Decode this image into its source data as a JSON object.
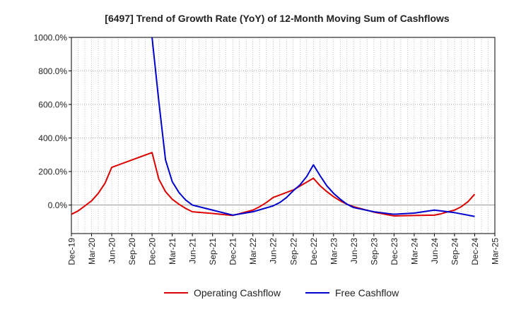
{
  "chart_data": {
    "type": "line",
    "title": "[6497]  Trend of Growth Rate (YoY) of 12-Month Moving Sum of Cashflows",
    "xlabel": "",
    "ylabel": "",
    "x_tick_labels": [
      "Dec-19",
      "Mar-20",
      "Jun-20",
      "Sep-20",
      "Dec-20",
      "Mar-21",
      "Jun-21",
      "Sep-21",
      "Dec-21",
      "Mar-22",
      "Jun-22",
      "Sep-22",
      "Dec-22",
      "Mar-23",
      "Jun-23",
      "Sep-23",
      "Dec-23",
      "Mar-24",
      "Jun-24",
      "Sep-24",
      "Dec-24",
      "Mar-25"
    ],
    "y_tick_labels": [
      "0.0%",
      "200.0%",
      "400.0%",
      "600.0%",
      "800.0%",
      "1000.0%"
    ],
    "y_ticks": [
      0,
      200,
      400,
      600,
      800,
      1000
    ],
    "ylim": [
      -170,
      1000
    ],
    "x_month_range": [
      0,
      63
    ],
    "grid": true,
    "legend_position": "bottom",
    "colors": {
      "operating": "#dd0000",
      "free": "#0000cc",
      "grid": "#999999",
      "axis": "#000000"
    },
    "series": [
      {
        "name": "Operating Cashflow",
        "color": "#dd0000",
        "x": [
          "Dec-19",
          "Jan-20",
          "Feb-20",
          "Mar-20",
          "Apr-20",
          "May-20",
          "Jun-20",
          "Dec-20",
          "Jan-21",
          "Feb-21",
          "Mar-21",
          "Apr-21",
          "May-21",
          "Jun-21",
          "Sep-21",
          "Dec-21",
          "Mar-22",
          "Apr-22",
          "May-22",
          "Jun-22",
          "Sep-22",
          "Dec-22",
          "Jan-23",
          "Feb-23",
          "Mar-23",
          "Apr-23",
          "May-23",
          "Jun-23",
          "Sep-23",
          "Dec-23",
          "Mar-24",
          "Jun-24",
          "Jul-24",
          "Aug-24",
          "Sep-24",
          "Oct-24",
          "Nov-24",
          "Dec-24"
        ],
        "y": [
          -55,
          -35,
          -5,
          25,
          70,
          130,
          225,
          313,
          155,
          80,
          35,
          5,
          -20,
          -40,
          -50,
          -62,
          -30,
          -10,
          15,
          45,
          90,
          160,
          115,
          80,
          50,
          25,
          5,
          -10,
          -42,
          -65,
          -62,
          -60,
          -52,
          -40,
          -30,
          -10,
          20,
          65
        ]
      },
      {
        "name": "Free Cashflow",
        "color": "#0000cc",
        "x": [
          "Dec-20",
          "Jan-21",
          "Feb-21",
          "Mar-21",
          "Apr-21",
          "May-21",
          "Jun-21",
          "Sep-21",
          "Dec-21",
          "Mar-22",
          "Jun-22",
          "Jul-22",
          "Aug-22",
          "Sep-22",
          "Oct-22",
          "Nov-22",
          "Dec-22",
          "Jan-23",
          "Feb-23",
          "Mar-23",
          "Apr-23",
          "May-23",
          "Jun-23",
          "Sep-23",
          "Dec-23",
          "Mar-24",
          "Jun-24",
          "Sep-24",
          "Dec-24"
        ],
        "y": [
          1000,
          620,
          270,
          140,
          75,
          30,
          0,
          -30,
          -60,
          -40,
          -5,
          15,
          45,
          85,
          120,
          170,
          240,
          175,
          115,
          70,
          35,
          5,
          -15,
          -40,
          -55,
          -48,
          -30,
          -45,
          -68
        ]
      }
    ]
  }
}
